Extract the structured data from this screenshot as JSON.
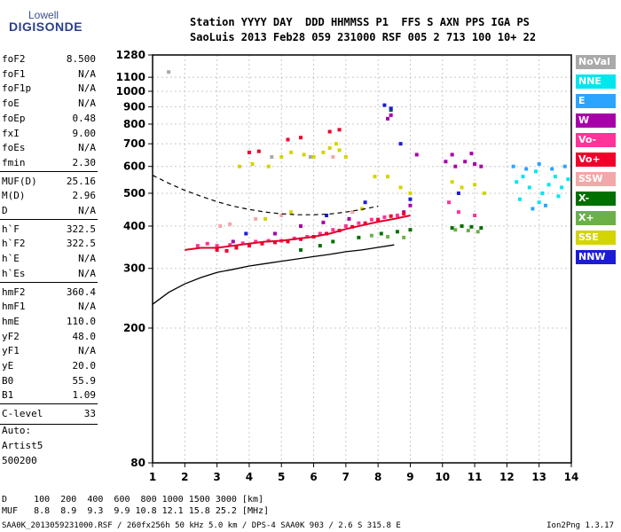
{
  "logo": {
    "top": "Lowell",
    "bottom": "DIGISONDE"
  },
  "header": {
    "line1": "Station YYYY DAY  DDD HHMMSS P1  FFS S AXN PPS IGA PS",
    "line2": "SaoLuis 2013 Feb28 059 231000 RSF 005 2 713 100 10+ 22"
  },
  "params": [
    {
      "name": "foF2",
      "value": "8.500"
    },
    {
      "name": "foF1",
      "value": "N/A"
    },
    {
      "name": "foF1p",
      "value": "N/A"
    },
    {
      "name": "foE",
      "value": "N/A"
    },
    {
      "name": "foEp",
      "value": "0.48"
    },
    {
      "name": "fxI",
      "value": "9.00"
    },
    {
      "name": "foEs",
      "value": "N/A"
    },
    {
      "name": "fmin",
      "value": "2.30"
    },
    {
      "name": "MUF(D)",
      "value": "25.16"
    },
    {
      "name": "M(D)",
      "value": "2.96"
    },
    {
      "name": "D",
      "value": "N/A"
    },
    {
      "name": "h`F",
      "value": "322.5"
    },
    {
      "name": "h`F2",
      "value": "322.5"
    },
    {
      "name": "h`E",
      "value": "N/A"
    },
    {
      "name": "h`Es",
      "value": "N/A"
    },
    {
      "name": "hmF2",
      "value": "360.4"
    },
    {
      "name": "hmF1",
      "value": "N/A"
    },
    {
      "name": "hmE",
      "value": "110.0"
    },
    {
      "name": "yF2",
      "value": "48.0"
    },
    {
      "name": "yF1",
      "value": "N/A"
    },
    {
      "name": "yE",
      "value": "20.0"
    },
    {
      "name": "B0",
      "value": "55.9"
    },
    {
      "name": "B1",
      "value": "1.09"
    },
    {
      "name": "C-level",
      "value": "33"
    }
  ],
  "auto": {
    "line1": "Auto:",
    "line2": "Artist5",
    "line3": "500200"
  },
  "legend": [
    {
      "label": "NoVal",
      "color": "#a9a9a9"
    },
    {
      "label": "NNE",
      "color": "#00e5ee"
    },
    {
      "label": "E",
      "color": "#2aa4ff"
    },
    {
      "label": "W",
      "color": "#a800a8"
    },
    {
      "label": "Vo-",
      "color": "#ff3399"
    },
    {
      "label": "Vo+",
      "color": "#f0002a"
    },
    {
      "label": "SSW",
      "color": "#f2a8a8"
    },
    {
      "label": "X-",
      "color": "#007000"
    },
    {
      "label": "X+",
      "color": "#6cb048"
    },
    {
      "label": "SSE",
      "color": "#d4d400"
    },
    {
      "label": "NNW",
      "color": "#1c1cd8"
    }
  ],
  "footer": {
    "d_row": "D     100  200  400  600  800 1000 1500 3000 [km]",
    "muf_row": "MUF   8.8  8.9  9.3  9.9 10.8 12.1 15.8 25.2 [MHz]",
    "bottom_left": "SAA0K_2013059231000.RSF / 260fx256h 50 kHz 5.0 km / DPS-4 SAA0K 903 / 2.6 S 315.8 E",
    "bottom_right": "Ion2Png 1.3.17"
  },
  "chart_data": {
    "type": "scatter",
    "x_ticks": [
      "1",
      "2",
      "3",
      "4",
      "5",
      "6",
      "7",
      "8",
      "9",
      "10",
      "11",
      "12",
      "13",
      "14"
    ],
    "y_ticks": [
      "80",
      "200",
      "300",
      "400",
      "500",
      "600",
      "700",
      "800",
      "900",
      "1000",
      "1100",
      "1280"
    ],
    "xlim": [
      1,
      14
    ],
    "ylim": [
      80,
      1280
    ],
    "y_scale": "log",
    "grid": true,
    "legend_position": "right",
    "series": [
      {
        "name": "NoVal",
        "color": "#a9a9a9",
        "points": [
          [
            1.5,
            1140
          ],
          [
            4.7,
            640
          ],
          [
            5.9,
            640
          ]
        ]
      },
      {
        "name": "NNE",
        "color": "#00e5ee",
        "points": [
          [
            12.3,
            540
          ],
          [
            12.5,
            560
          ],
          [
            12.7,
            520
          ],
          [
            12.9,
            580
          ],
          [
            13.1,
            500
          ],
          [
            13.3,
            530
          ],
          [
            13.5,
            560
          ],
          [
            13.7,
            520
          ],
          [
            13.9,
            550
          ],
          [
            12.4,
            480
          ],
          [
            13.0,
            470
          ],
          [
            13.6,
            490
          ]
        ]
      },
      {
        "name": "E",
        "color": "#2aa4ff",
        "points": [
          [
            12.2,
            600
          ],
          [
            12.6,
            590
          ],
          [
            13.0,
            610
          ],
          [
            13.4,
            590
          ],
          [
            13.8,
            600
          ],
          [
            12.8,
            450
          ],
          [
            13.2,
            460
          ]
        ]
      },
      {
        "name": "W",
        "color": "#a800a8",
        "points": [
          [
            10.1,
            620
          ],
          [
            10.4,
            600
          ],
          [
            10.7,
            620
          ],
          [
            11.0,
            610
          ],
          [
            11.2,
            600
          ],
          [
            10.3,
            650
          ],
          [
            10.9,
            655
          ],
          [
            8.3,
            830
          ],
          [
            8.4,
            850
          ],
          [
            9.2,
            650
          ],
          [
            8.8,
            440
          ],
          [
            9.0,
            460
          ],
          [
            7.1,
            420
          ],
          [
            6.3,
            410
          ],
          [
            5.6,
            400
          ],
          [
            4.8,
            380
          ],
          [
            3.5,
            360
          ]
        ]
      },
      {
        "name": "Vo-",
        "color": "#ff3399",
        "points": [
          [
            2.4,
            350
          ],
          [
            2.7,
            355
          ],
          [
            3.0,
            350
          ],
          [
            3.4,
            352
          ],
          [
            3.8,
            356
          ],
          [
            4.2,
            360
          ],
          [
            4.6,
            362
          ],
          [
            5.0,
            362
          ],
          [
            5.4,
            368
          ],
          [
            5.8,
            372
          ],
          [
            6.2,
            380
          ],
          [
            6.6,
            390
          ],
          [
            7.0,
            400
          ],
          [
            7.4,
            408
          ],
          [
            7.8,
            418
          ],
          [
            8.2,
            425
          ],
          [
            8.6,
            430
          ],
          [
            10.2,
            470
          ],
          [
            10.5,
            440
          ],
          [
            11.0,
            430
          ]
        ]
      },
      {
        "name": "Vo+",
        "color": "#f0002a",
        "points": [
          [
            3.0,
            340
          ],
          [
            3.3,
            338
          ],
          [
            3.6,
            345
          ],
          [
            4.0,
            350
          ],
          [
            4.4,
            355
          ],
          [
            4.8,
            358
          ],
          [
            5.2,
            360
          ],
          [
            5.6,
            366
          ],
          [
            6.0,
            372
          ],
          [
            6.4,
            380
          ],
          [
            6.8,
            388
          ],
          [
            7.2,
            398
          ],
          [
            7.6,
            408
          ],
          [
            8.0,
            418
          ],
          [
            8.4,
            428
          ],
          [
            8.8,
            435
          ],
          [
            4.0,
            660
          ],
          [
            4.3,
            665
          ],
          [
            5.2,
            720
          ],
          [
            5.6,
            730
          ],
          [
            6.5,
            760
          ],
          [
            6.8,
            770
          ]
        ]
      },
      {
        "name": "SSW",
        "color": "#f2a8a8",
        "points": [
          [
            3.1,
            400
          ],
          [
            3.4,
            405
          ],
          [
            4.2,
            420
          ],
          [
            5.0,
            430
          ],
          [
            6.6,
            640
          ],
          [
            7.2,
            440
          ]
        ]
      },
      {
        "name": "X-",
        "color": "#007000",
        "points": [
          [
            5.6,
            340
          ],
          [
            6.2,
            350
          ],
          [
            6.6,
            360
          ],
          [
            7.4,
            370
          ],
          [
            8.1,
            380
          ],
          [
            8.6,
            385
          ],
          [
            9.0,
            390
          ],
          [
            10.3,
            395
          ],
          [
            10.6,
            400
          ],
          [
            10.9,
            398
          ],
          [
            11.2,
            395
          ],
          [
            8.4,
            880
          ]
        ]
      },
      {
        "name": "X+",
        "color": "#6cb048",
        "points": [
          [
            7.8,
            375
          ],
          [
            8.3,
            372
          ],
          [
            8.8,
            370
          ],
          [
            10.4,
            390
          ],
          [
            10.8,
            388
          ],
          [
            11.1,
            385
          ]
        ]
      },
      {
        "name": "SSE",
        "color": "#d4d400",
        "points": [
          [
            3.7,
            600
          ],
          [
            4.1,
            610
          ],
          [
            4.6,
            600
          ],
          [
            5.0,
            640
          ],
          [
            5.3,
            660
          ],
          [
            5.7,
            650
          ],
          [
            6.0,
            640
          ],
          [
            6.3,
            660
          ],
          [
            6.5,
            680
          ],
          [
            6.8,
            670
          ],
          [
            7.0,
            640
          ],
          [
            6.7,
            700
          ],
          [
            7.9,
            560
          ],
          [
            8.3,
            560
          ],
          [
            8.7,
            520
          ],
          [
            9.0,
            500
          ],
          [
            10.3,
            540
          ],
          [
            10.6,
            520
          ],
          [
            11.0,
            530
          ],
          [
            11.3,
            500
          ],
          [
            4.5,
            420
          ],
          [
            5.3,
            440
          ],
          [
            7.5,
            450
          ]
        ]
      },
      {
        "name": "NNW",
        "color": "#1c1cd8",
        "points": [
          [
            8.2,
            910
          ],
          [
            8.4,
            890
          ],
          [
            8.7,
            700
          ],
          [
            9.0,
            480
          ],
          [
            10.5,
            500
          ],
          [
            7.6,
            470
          ],
          [
            3.9,
            380
          ],
          [
            6.4,
            430
          ]
        ]
      }
    ],
    "curves": [
      {
        "style": "solid",
        "points": [
          [
            1.0,
            235
          ],
          [
            1.5,
            255
          ],
          [
            2.0,
            270
          ],
          [
            2.5,
            282
          ],
          [
            3.0,
            292
          ],
          [
            3.5,
            298
          ],
          [
            4.0,
            305
          ],
          [
            4.5,
            310
          ],
          [
            5.0,
            315
          ],
          [
            5.5,
            320
          ],
          [
            6.0,
            325
          ],
          [
            6.5,
            330
          ],
          [
            7.0,
            336
          ],
          [
            7.5,
            340
          ],
          [
            8.0,
            346
          ],
          [
            8.5,
            352
          ]
        ]
      },
      {
        "style": "dashed",
        "points": [
          [
            1.0,
            565
          ],
          [
            1.5,
            535
          ],
          [
            2.0,
            510
          ],
          [
            2.5,
            490
          ],
          [
            3.0,
            472
          ],
          [
            3.5,
            458
          ],
          [
            4.0,
            448
          ],
          [
            4.5,
            440
          ],
          [
            5.0,
            435
          ],
          [
            5.5,
            432
          ],
          [
            6.0,
            432
          ],
          [
            6.5,
            434
          ],
          [
            7.0,
            440
          ],
          [
            7.5,
            448
          ],
          [
            8.0,
            458
          ]
        ]
      },
      {
        "style": "red",
        "points": [
          [
            2.0,
            340
          ],
          [
            2.5,
            345
          ],
          [
            3.0,
            345
          ],
          [
            3.5,
            350
          ],
          [
            4.0,
            355
          ],
          [
            4.5,
            360
          ],
          [
            5.0,
            362
          ],
          [
            5.5,
            367
          ],
          [
            6.0,
            372
          ],
          [
            6.5,
            380
          ],
          [
            7.0,
            392
          ],
          [
            7.5,
            402
          ],
          [
            8.0,
            412
          ],
          [
            8.5,
            420
          ],
          [
            9.0,
            430
          ]
        ]
      }
    ]
  }
}
